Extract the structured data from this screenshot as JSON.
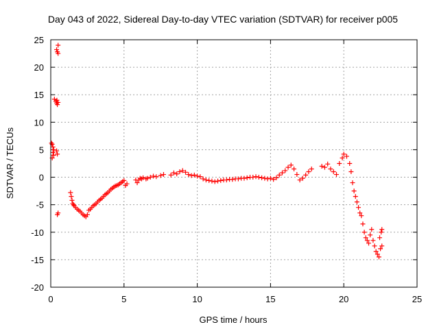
{
  "chart_data": {
    "type": "scatter",
    "title": "Day 043 of 2022, Sidereal Day-to-day VTEC variation (SDTVAR) for receiver p005",
    "xlabel": "GPS time / hours",
    "ylabel": "SDTVAR / TECUs",
    "xlim": [
      0,
      25
    ],
    "ylim": [
      -20,
      25
    ],
    "xticks": [
      0,
      5,
      10,
      15,
      20,
      25
    ],
    "yticks": [
      -20,
      -15,
      -10,
      -5,
      0,
      5,
      10,
      15,
      20,
      25
    ],
    "grid": true,
    "marker": "+",
    "color": "#ff0000",
    "series": [
      {
        "name": "SDTVAR",
        "x": [
          0.05,
          0.1,
          0.15,
          0.2,
          0.1,
          0.15,
          0.2,
          0.25,
          0.35,
          0.4,
          0.42,
          0.45,
          0.5,
          0.5,
          0.4,
          0.45,
          0.5,
          0.4,
          0.45,
          0.45,
          0.5,
          1.35,
          1.4,
          1.45,
          1.5,
          1.55,
          1.6,
          1.7,
          1.8,
          1.9,
          2.0,
          2.1,
          2.2,
          2.3,
          2.4,
          2.5,
          2.6,
          2.7,
          2.8,
          2.9,
          3.0,
          3.1,
          3.2,
          3.3,
          3.4,
          3.5,
          3.6,
          3.7,
          3.8,
          3.9,
          4.0,
          4.1,
          4.2,
          4.3,
          4.4,
          4.5,
          4.6,
          4.7,
          4.8,
          4.9,
          5.0,
          5.1,
          5.2,
          5.8,
          5.9,
          6.0,
          6.1,
          6.2,
          6.3,
          6.5,
          6.6,
          6.8,
          7.0,
          7.2,
          7.5,
          7.7,
          8.2,
          8.4,
          8.6,
          8.8,
          9.0,
          9.2,
          9.4,
          9.6,
          9.8,
          10.0,
          10.2,
          10.4,
          10.6,
          10.8,
          11.0,
          11.2,
          11.4,
          11.6,
          11.8,
          12.0,
          12.2,
          12.4,
          12.6,
          12.8,
          13.0,
          13.2,
          13.4,
          13.6,
          13.8,
          14.0,
          14.2,
          14.4,
          14.6,
          14.8,
          15.0,
          15.2,
          15.4,
          15.6,
          15.8,
          16.0,
          16.2,
          16.4,
          16.6,
          16.8,
          17.0,
          17.2,
          17.4,
          17.6,
          17.8,
          18.5,
          18.7,
          18.9,
          19.1,
          19.3,
          19.5,
          19.7,
          19.9,
          20.0,
          20.2,
          20.4,
          20.5,
          20.6,
          20.7,
          20.8,
          20.9,
          21.0,
          21.1,
          21.2,
          21.3,
          21.4,
          21.5,
          21.6,
          21.7,
          21.8,
          21.9,
          22.0,
          22.1,
          22.2,
          22.3,
          22.4,
          22.5,
          22.6,
          22.45,
          22.55,
          22.6
        ],
        "y": [
          6.2,
          6.0,
          5.5,
          4.0,
          3.5,
          4.5,
          5.0,
          14.2,
          13.8,
          13.5,
          14.0,
          13.2,
          13.6,
          24.0,
          23.2,
          22.8,
          22.5,
          4.8,
          4.2,
          -6.8,
          -6.5,
          -2.8,
          -3.5,
          -4.2,
          -4.8,
          -5.0,
          -5.2,
          -5.5,
          -5.8,
          -6.0,
          -6.2,
          -6.5,
          -6.8,
          -7.0,
          -7.2,
          -6.8,
          -6.0,
          -5.8,
          -5.5,
          -5.2,
          -5.0,
          -4.8,
          -4.5,
          -4.2,
          -4.0,
          -3.8,
          -3.5,
          -3.2,
          -3.0,
          -2.8,
          -2.5,
          -2.2,
          -2.0,
          -1.8,
          -1.6,
          -1.5,
          -1.4,
          -1.2,
          -1.0,
          -0.8,
          -0.6,
          -1.5,
          -1.2,
          -0.5,
          -1.0,
          -0.5,
          -0.2,
          -0.3,
          -0.1,
          -0.3,
          -0.2,
          0.0,
          0.2,
          0.1,
          0.3,
          0.5,
          0.4,
          0.8,
          0.6,
          1.0,
          1.2,
          0.9,
          0.5,
          0.3,
          0.4,
          0.2,
          0.1,
          -0.3,
          -0.5,
          -0.6,
          -0.7,
          -0.8,
          -0.7,
          -0.6,
          -0.5,
          -0.5,
          -0.4,
          -0.4,
          -0.3,
          -0.3,
          -0.2,
          -0.2,
          -0.1,
          0.0,
          0.0,
          0.1,
          0.0,
          -0.1,
          -0.2,
          -0.3,
          -0.2,
          -0.4,
          -0.1,
          0.4,
          0.8,
          1.2,
          1.8,
          2.2,
          1.5,
          0.5,
          -0.5,
          -0.2,
          0.4,
          1.0,
          1.5,
          2.0,
          1.8,
          2.4,
          1.5,
          1.0,
          0.5,
          2.5,
          3.5,
          4.2,
          3.8,
          2.5,
          1.0,
          -1.0,
          -2.5,
          -3.5,
          -4.5,
          -5.5,
          -6.5,
          -7.0,
          -8.5,
          -10.0,
          -11.0,
          -11.5,
          -12.0,
          -10.5,
          -9.5,
          -11.5,
          -12.5,
          -13.5,
          -14.0,
          -14.5,
          -13.0,
          -12.5,
          -11.0,
          -10.0,
          -9.5
        ]
      }
    ]
  }
}
